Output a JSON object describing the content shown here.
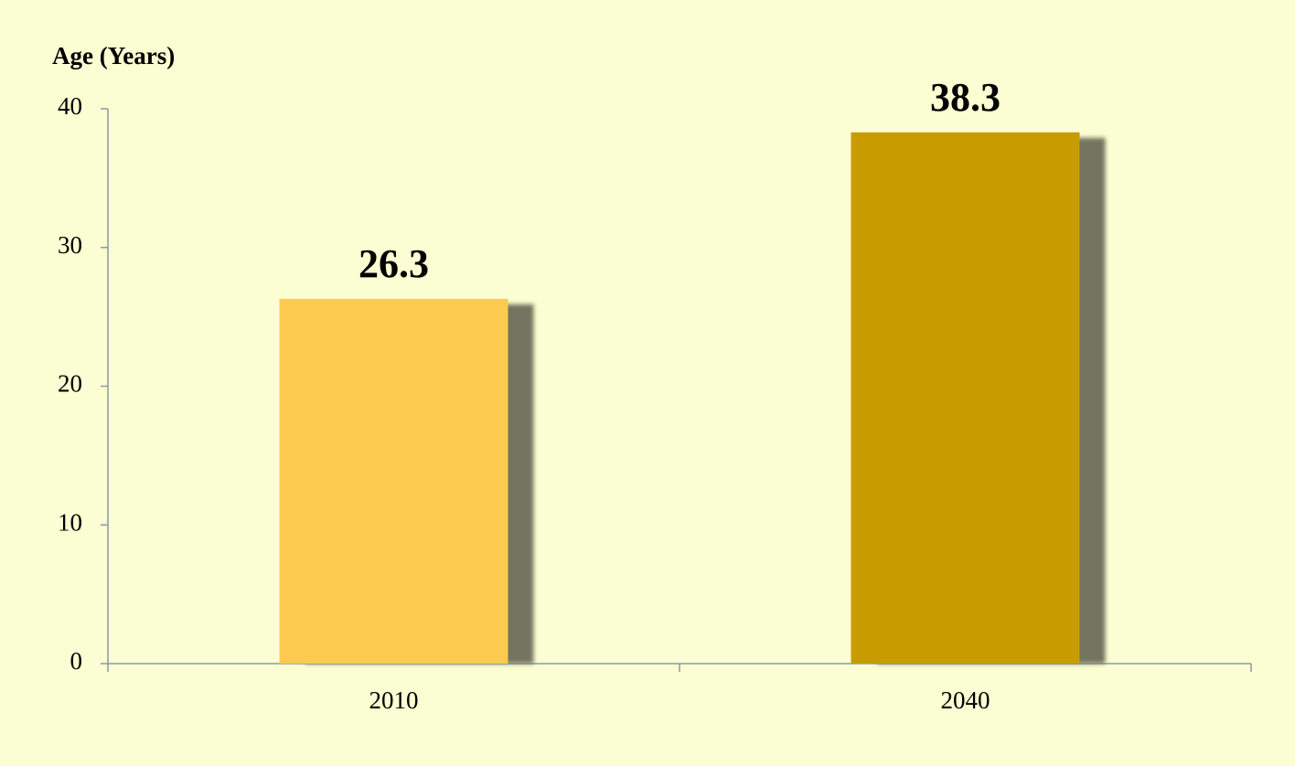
{
  "chart_data": {
    "type": "bar",
    "y_axis_label": "Age (Years)",
    "categories": [
      "2010",
      "2040"
    ],
    "values": [
      26.3,
      38.3
    ],
    "colors": [
      "#fdca50",
      "#c89b00"
    ],
    "shadow_color": "#737561",
    "axis_color": "#8a9aa8",
    "background": "#fbfdd2",
    "ylim": [
      0,
      40
    ],
    "yticks": [
      0,
      10,
      20,
      30,
      40
    ],
    "grid": false
  }
}
